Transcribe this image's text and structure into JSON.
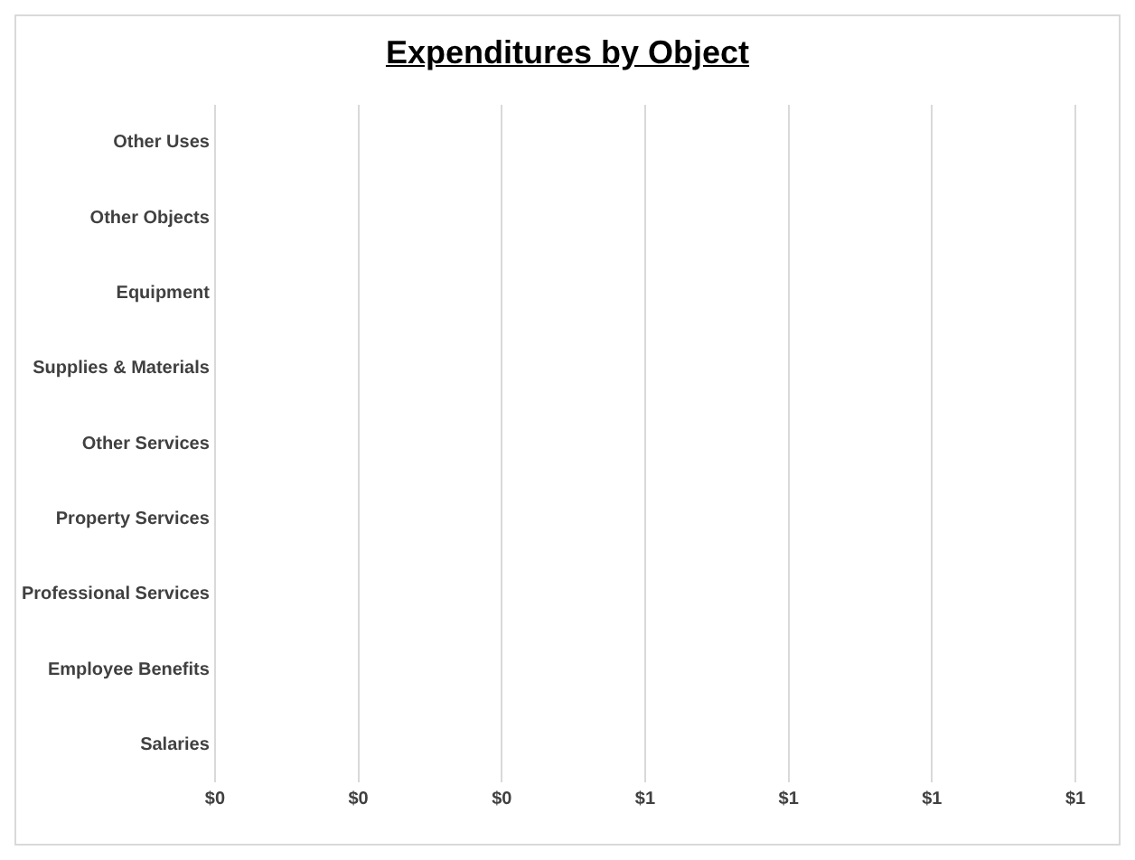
{
  "chart_data": {
    "type": "bar",
    "orientation": "horizontal",
    "title": "Expenditures by Object",
    "categories": [
      "Other Uses",
      "Other Objects",
      "Equipment",
      "Supplies & Materials",
      "Other Services",
      "Property Services",
      "Professional Services",
      "Employee Benefits",
      "Salaries"
    ],
    "values": [
      0,
      0,
      0,
      0,
      0,
      0,
      0,
      0,
      0
    ],
    "xlim": [
      0,
      1.2
    ],
    "xticks": [
      {
        "value": 0,
        "label": "$0"
      },
      {
        "value": 0.2,
        "label": "$0"
      },
      {
        "value": 0.4,
        "label": "$0"
      },
      {
        "value": 0.6,
        "label": "$1"
      },
      {
        "value": 0.8,
        "label": "$1"
      },
      {
        "value": 1,
        "label": "$1"
      },
      {
        "value": 1.2,
        "label": "$1"
      }
    ],
    "grid": "x",
    "legend": false
  }
}
